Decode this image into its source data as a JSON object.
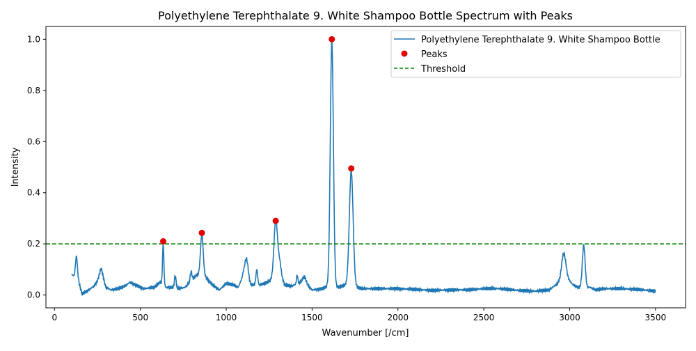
{
  "chart_data": {
    "type": "line",
    "title": "Polyethylene Terephthalate 9. White Shampoo Bottle Spectrum with Peaks",
    "xlabel": "Wavenumber [/cm]",
    "ylabel": "Intensity",
    "xlim": [
      -50,
      3675
    ],
    "ylim": [
      -0.05,
      1.05
    ],
    "x_ticks": [
      0,
      500,
      1000,
      1500,
      2000,
      2500,
      3000,
      3500
    ],
    "y_ticks": [
      0.0,
      0.2,
      0.4,
      0.6,
      0.8,
      1.0
    ],
    "x_tick_labels": [
      "0",
      "500",
      "1000",
      "1500",
      "2000",
      "2500",
      "3000",
      "3500"
    ],
    "y_tick_labels": [
      "0.0",
      "0.2",
      "0.4",
      "0.6",
      "0.8",
      "1.0"
    ],
    "grid": false,
    "legend_position": "top-right",
    "series": [
      {
        "name": "Polyethylene Terephthalate 9. White Shampoo Bottle",
        "kind": "line",
        "color": "#1f77b4",
        "baseline": [
          [
            100,
            0.08
          ],
          [
            115,
            0.075
          ],
          [
            130,
            0.1
          ],
          [
            145,
            0.04
          ],
          [
            160,
            0.005
          ],
          [
            175,
            0.01
          ],
          [
            200,
            0.02
          ],
          [
            230,
            0.035
          ],
          [
            270,
            0.075
          ],
          [
            300,
            0.03
          ],
          [
            330,
            0.02
          ],
          [
            370,
            0.025
          ],
          [
            410,
            0.035
          ],
          [
            440,
            0.05
          ],
          [
            470,
            0.04
          ],
          [
            520,
            0.025
          ],
          [
            580,
            0.03
          ],
          [
            615,
            0.05
          ],
          [
            650,
            0.03
          ],
          [
            690,
            0.03
          ],
          [
            720,
            0.025
          ],
          [
            760,
            0.03
          ],
          [
            800,
            0.06
          ],
          [
            830,
            0.08
          ],
          [
            880,
            0.07
          ],
          [
            920,
            0.04
          ],
          [
            960,
            0.02
          ],
          [
            1000,
            0.045
          ],
          [
            1040,
            0.04
          ],
          [
            1070,
            0.03
          ],
          [
            1100,
            0.08
          ],
          [
            1140,
            0.04
          ],
          [
            1200,
            0.04
          ],
          [
            1240,
            0.05
          ],
          [
            1310,
            0.08
          ],
          [
            1340,
            0.04
          ],
          [
            1380,
            0.035
          ],
          [
            1440,
            0.05
          ],
          [
            1470,
            0.04
          ],
          [
            1500,
            0.02
          ],
          [
            1560,
            0.025
          ],
          [
            1590,
            0.035
          ],
          [
            1650,
            0.03
          ],
          [
            1700,
            0.04
          ],
          [
            1760,
            0.03
          ],
          [
            1790,
            0.025
          ],
          [
            1850,
            0.025
          ],
          [
            2000,
            0.025
          ],
          [
            2100,
            0.022
          ],
          [
            2200,
            0.018
          ],
          [
            2300,
            0.02
          ],
          [
            2400,
            0.02
          ],
          [
            2500,
            0.025
          ],
          [
            2600,
            0.025
          ],
          [
            2700,
            0.018
          ],
          [
            2800,
            0.015
          ],
          [
            2880,
            0.02
          ],
          [
            2920,
            0.04
          ],
          [
            2980,
            0.07
          ],
          [
            3020,
            0.04
          ],
          [
            3050,
            0.03
          ],
          [
            3120,
            0.03
          ],
          [
            3150,
            0.02
          ],
          [
            3200,
            0.025
          ],
          [
            3300,
            0.025
          ],
          [
            3400,
            0.022
          ],
          [
            3500,
            0.015
          ]
        ],
        "peaks": [
          [
            127,
            0.055,
            5
          ],
          [
            273,
            0.03,
            10
          ],
          [
            633,
            0.16,
            4
          ],
          [
            703,
            0.045,
            5
          ],
          [
            795,
            0.035,
            5
          ],
          [
            858,
            0.16,
            8
          ],
          [
            1118,
            0.08,
            10
          ],
          [
            1178,
            0.06,
            5
          ],
          [
            1288,
            0.22,
            10
          ],
          [
            1310,
            0.05,
            10
          ],
          [
            1413,
            0.035,
            4
          ],
          [
            1455,
            0.025,
            10
          ],
          [
            1615,
            0.96,
            9
          ],
          [
            1728,
            0.45,
            11
          ],
          [
            2965,
            0.1,
            12
          ],
          [
            3082,
            0.165,
            8
          ]
        ]
      },
      {
        "name": "Peaks",
        "kind": "scatter",
        "color": "#e30000",
        "x": [
          633,
          858,
          1288,
          1615,
          1728
        ],
        "y": [
          0.21,
          0.243,
          0.29,
          1.0,
          0.495
        ]
      },
      {
        "name": "Threshold",
        "kind": "hline",
        "color": "#008000",
        "y": 0.2
      }
    ]
  }
}
